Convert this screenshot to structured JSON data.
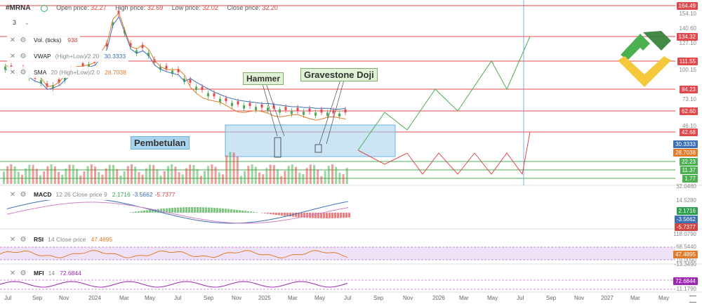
{
  "header": {
    "symbol": "#MRNA",
    "open_label": "Open price:",
    "open": "32.27",
    "high_label": "High price:",
    "high": "32.69",
    "low_label": "Low price:",
    "low": "32.02",
    "close_label": "Close price:",
    "close": "32.20"
  },
  "timeframe": "3",
  "indicators": [
    {
      "name": "Vol. (ticks)",
      "params": "",
      "value": "938",
      "color": "#d0453f"
    },
    {
      "name": "VWAP",
      "params": "(High+Low)/2 20",
      "value": "30.3333",
      "color": "#3b6fb6"
    },
    {
      "name": "SMA",
      "params": "20 (High+Low)/2 0",
      "value": "28.7038",
      "color": "#e07b2a"
    }
  ],
  "macd": {
    "name": "MACD",
    "params": "12 26 Close price 9",
    "v1": "2.1716",
    "v2": "-3.5662",
    "v3": "-5.7377"
  },
  "rsi": {
    "name": "RSI",
    "params": "14 Close price",
    "value": "47.4895"
  },
  "mfi": {
    "name": "MFI",
    "params": "14",
    "value": "72.6844"
  },
  "annotations": {
    "hammer": "Hammer",
    "doji": "Gravestone Doji",
    "correction": "Pembetulan"
  },
  "price_levels": [
    {
      "value": "164.49",
      "color": "#e0484b"
    },
    {
      "value": "134.32",
      "color": "#e0484b"
    },
    {
      "value": "111.55",
      "color": "#e0484b"
    },
    {
      "value": "84.23",
      "color": "#e0484b"
    },
    {
      "value": "62.60",
      "color": "#e0484b"
    },
    {
      "value": "42.68",
      "color": "#e0484b"
    },
    {
      "value": "30.3333",
      "color": "#3b6fb6"
    },
    {
      "value": "28.7038",
      "color": "#e07b2a"
    },
    {
      "value": "22.23",
      "color": "#4caf50"
    },
    {
      "value": "11.37",
      "color": "#4caf50"
    },
    {
      "value": "1.77",
      "color": "#4caf50"
    }
  ],
  "price_ticks": [
    "154.10",
    "140.60",
    "127.10",
    "100.15",
    "73.10",
    "46.10",
    "32.0480"
  ],
  "macd_ticks": [
    "14.5280"
  ],
  "rsi_ticks": [
    "118.0790",
    "68.5440",
    "19.0090",
    "-13.3490"
  ],
  "mfi_ticks": [
    "11.1790"
  ],
  "x_labels": [
    "Jul",
    "Sep",
    "Nov",
    "2024",
    "Mar",
    "May",
    "Jul",
    "Sep",
    "Nov",
    "2025",
    "Mar",
    "May",
    "Jul",
    "Sep",
    "Nov",
    "2026",
    "Mar",
    "May",
    "Jul",
    "Sep",
    "Nov",
    "2027",
    "Mar",
    "May"
  ],
  "colors": {
    "up": "#4caf50",
    "down": "#e0484b",
    "vwap": "#3b6fb6",
    "sma": "#e07b2a",
    "box": "#a9d4ee"
  }
}
